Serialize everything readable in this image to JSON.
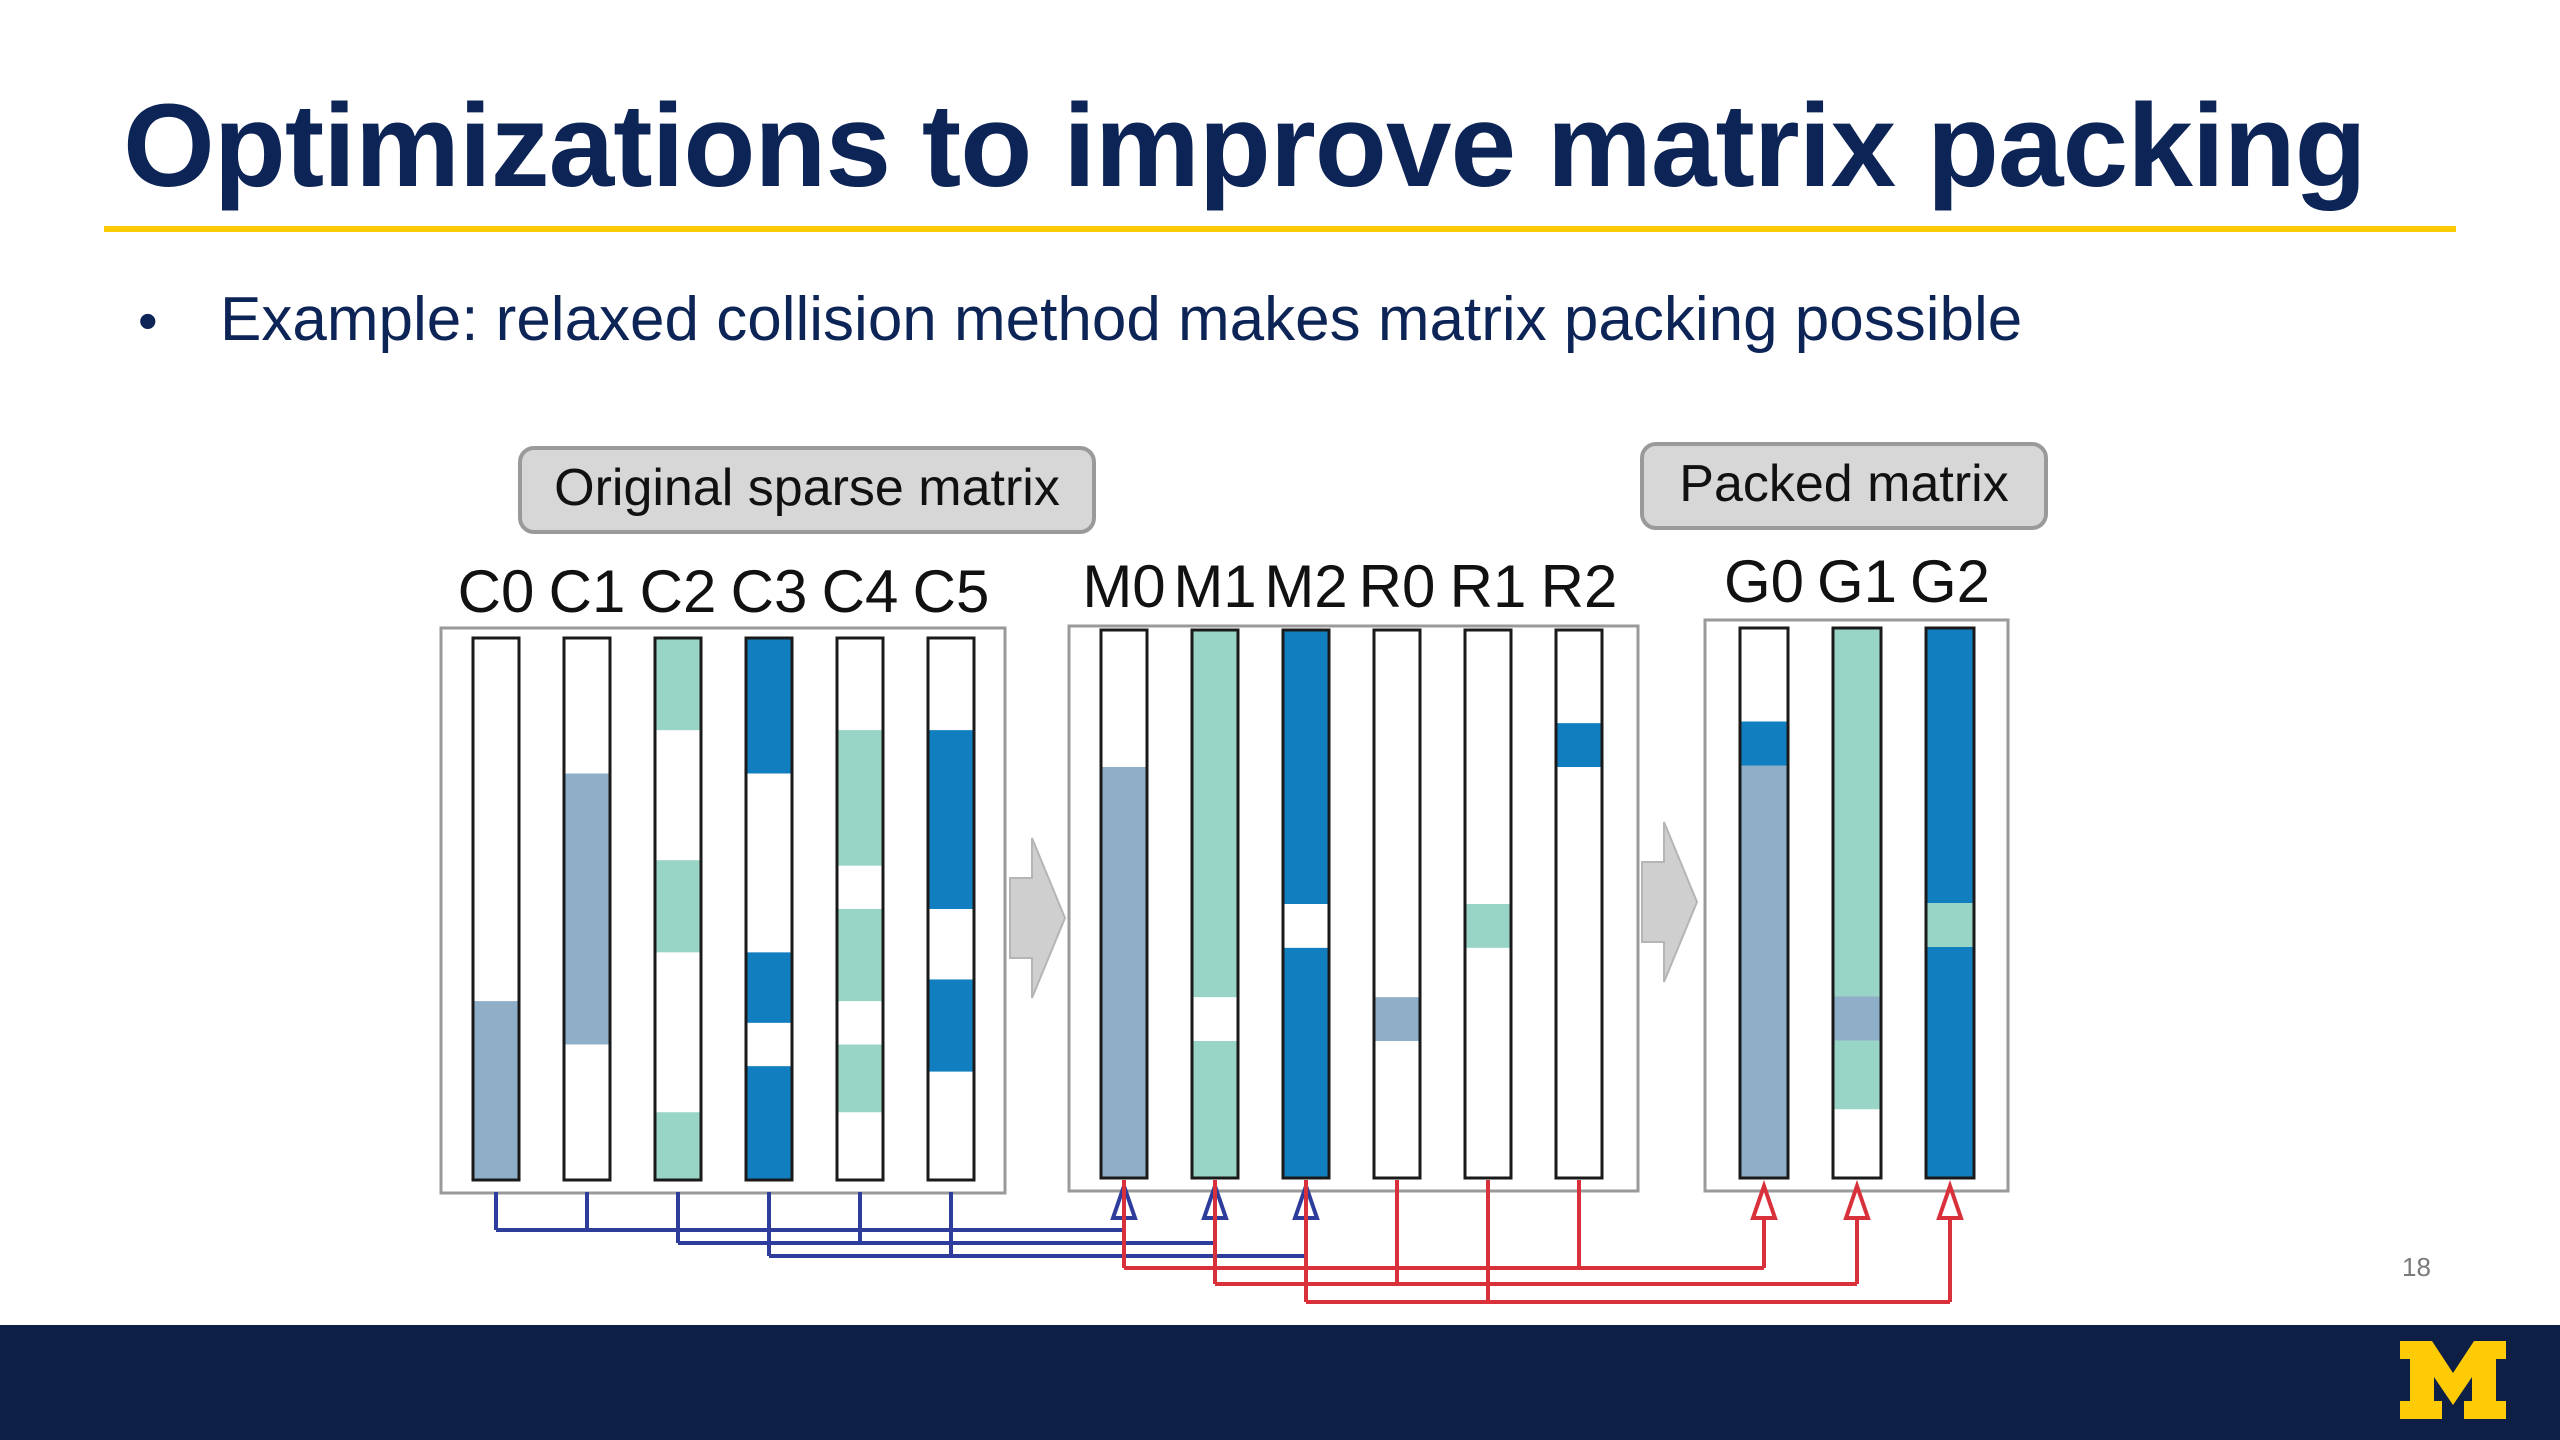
{
  "slide": {
    "title": "Optimizations to improve matrix packing",
    "bullet": "Example: relaxed collision method makes matrix packing possible",
    "page_number": "18"
  },
  "diagram": {
    "original_label": "Original sparse matrix",
    "packed_label": "Packed matrix",
    "colors": {
      "grey_blue": "#8fafc8",
      "teal": "#98d5c6",
      "blue": "#117ebf",
      "empty": "#ffffff",
      "blue_wire": "#2e3d9c",
      "red_wire": "#d9313c",
      "arrow": "#cfcfcf"
    },
    "groups": [
      {
        "name": "original",
        "columns": [
          {
            "label": "C0",
            "segments": [
              [
                0.0,
                0.67,
                "empty"
              ],
              [
                0.67,
                1.0,
                "grey_blue"
              ]
            ]
          },
          {
            "label": "C1",
            "segments": [
              [
                0.0,
                0.25,
                "empty"
              ],
              [
                0.25,
                0.75,
                "grey_blue"
              ],
              [
                0.75,
                1.0,
                "empty"
              ]
            ]
          },
          {
            "label": "C2",
            "segments": [
              [
                0.0,
                0.17,
                "teal"
              ],
              [
                0.17,
                0.41,
                "empty"
              ],
              [
                0.41,
                0.58,
                "teal"
              ],
              [
                0.58,
                0.875,
                "empty"
              ],
              [
                0.875,
                1.0,
                "teal"
              ]
            ]
          },
          {
            "label": "C3",
            "segments": [
              [
                0.0,
                0.25,
                "blue"
              ],
              [
                0.25,
                0.58,
                "empty"
              ],
              [
                0.58,
                0.71,
                "blue"
              ],
              [
                0.71,
                0.79,
                "empty"
              ],
              [
                0.79,
                1.0,
                "blue"
              ]
            ]
          },
          {
            "label": "C4",
            "segments": [
              [
                0.0,
                0.17,
                "empty"
              ],
              [
                0.17,
                0.42,
                "teal"
              ],
              [
                0.42,
                0.5,
                "empty"
              ],
              [
                0.5,
                0.67,
                "teal"
              ],
              [
                0.67,
                0.75,
                "empty"
              ],
              [
                0.75,
                0.875,
                "teal"
              ],
              [
                0.875,
                1.0,
                "empty"
              ]
            ]
          },
          {
            "label": "C5",
            "segments": [
              [
                0.0,
                0.17,
                "empty"
              ],
              [
                0.17,
                0.5,
                "blue"
              ],
              [
                0.5,
                0.63,
                "empty"
              ],
              [
                0.63,
                0.8,
                "blue"
              ],
              [
                0.8,
                1.0,
                "empty"
              ]
            ]
          }
        ]
      },
      {
        "name": "intermediate",
        "columns": [
          {
            "label": "M0",
            "segments": [
              [
                0.0,
                0.25,
                "empty"
              ],
              [
                0.25,
                1.0,
                "grey_blue"
              ]
            ]
          },
          {
            "label": "M1",
            "segments": [
              [
                0.0,
                0.67,
                "teal"
              ],
              [
                0.67,
                0.75,
                "empty"
              ],
              [
                0.75,
                1.0,
                "teal"
              ]
            ]
          },
          {
            "label": "M2",
            "segments": [
              [
                0.0,
                0.5,
                "blue"
              ],
              [
                0.5,
                0.58,
                "empty"
              ],
              [
                0.58,
                1.0,
                "blue"
              ]
            ]
          },
          {
            "label": "R0",
            "segments": [
              [
                0.0,
                0.67,
                "empty"
              ],
              [
                0.67,
                0.75,
                "grey_blue"
              ],
              [
                0.75,
                1.0,
                "empty"
              ]
            ]
          },
          {
            "label": "R1",
            "segments": [
              [
                0.0,
                0.5,
                "empty"
              ],
              [
                0.5,
                0.58,
                "teal"
              ],
              [
                0.58,
                1.0,
                "empty"
              ]
            ]
          },
          {
            "label": "R2",
            "segments": [
              [
                0.0,
                0.17,
                "empty"
              ],
              [
                0.17,
                0.25,
                "blue"
              ],
              [
                0.25,
                1.0,
                "empty"
              ]
            ]
          }
        ]
      },
      {
        "name": "packed",
        "columns": [
          {
            "label": "G0",
            "segments": [
              [
                0.0,
                0.17,
                "empty"
              ],
              [
                0.17,
                0.25,
                "blue"
              ],
              [
                0.25,
                1.0,
                "grey_blue"
              ]
            ]
          },
          {
            "label": "G1",
            "segments": [
              [
                0.0,
                0.67,
                "teal"
              ],
              [
                0.67,
                0.75,
                "grey_blue"
              ],
              [
                0.75,
                0.875,
                "teal"
              ],
              [
                0.875,
                1.0,
                "empty"
              ]
            ]
          },
          {
            "label": "G2",
            "segments": [
              [
                0.0,
                0.5,
                "blue"
              ],
              [
                0.5,
                0.58,
                "teal"
              ],
              [
                0.58,
                1.0,
                "blue"
              ]
            ]
          }
        ]
      }
    ],
    "merges": [
      {
        "sources": [
          "C0",
          "C1"
        ],
        "target": "M0"
      },
      {
        "sources": [
          "C2",
          "C4"
        ],
        "target": "M1"
      },
      {
        "sources": [
          "C3",
          "C5"
        ],
        "target": "M2"
      },
      {
        "sources": [
          "M0",
          "R2"
        ],
        "target": "G0"
      },
      {
        "sources": [
          "M1",
          "R0"
        ],
        "target": "G1"
      },
      {
        "sources": [
          "M2",
          "R1"
        ],
        "target": "G2"
      }
    ]
  }
}
